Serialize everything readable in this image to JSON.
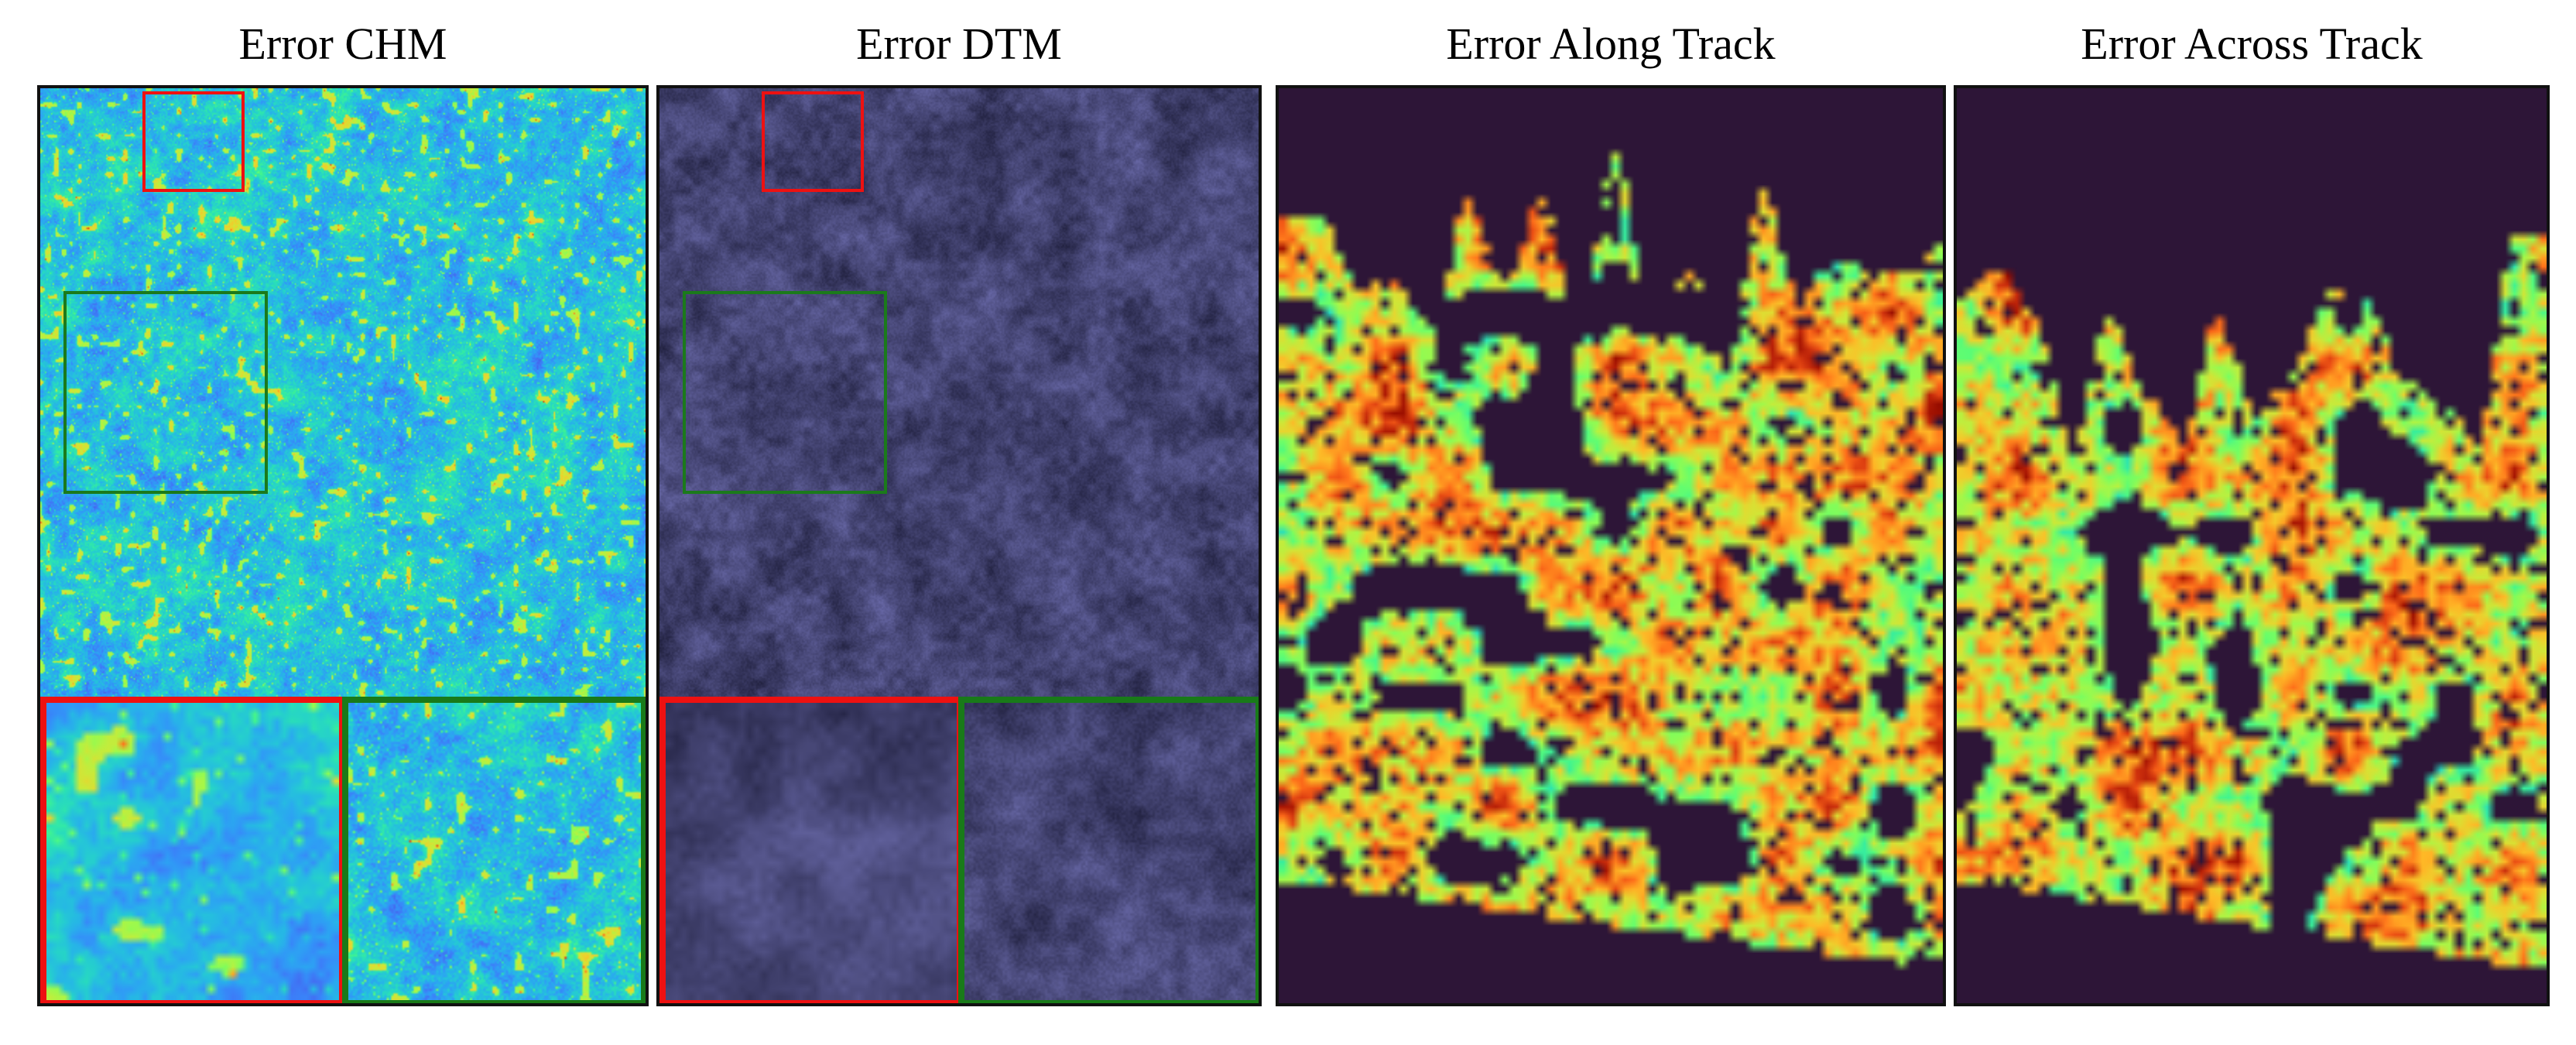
{
  "titles": {
    "chm": "Error CHM",
    "dtm": "Error DTM",
    "along": "Error Along Track",
    "across": "Error Across Track"
  },
  "colors": {
    "roi_red": "#ee1111",
    "roi_green": "#1b7a1b",
    "background_dark": "#2d1537",
    "colormap": "turbo"
  }
}
